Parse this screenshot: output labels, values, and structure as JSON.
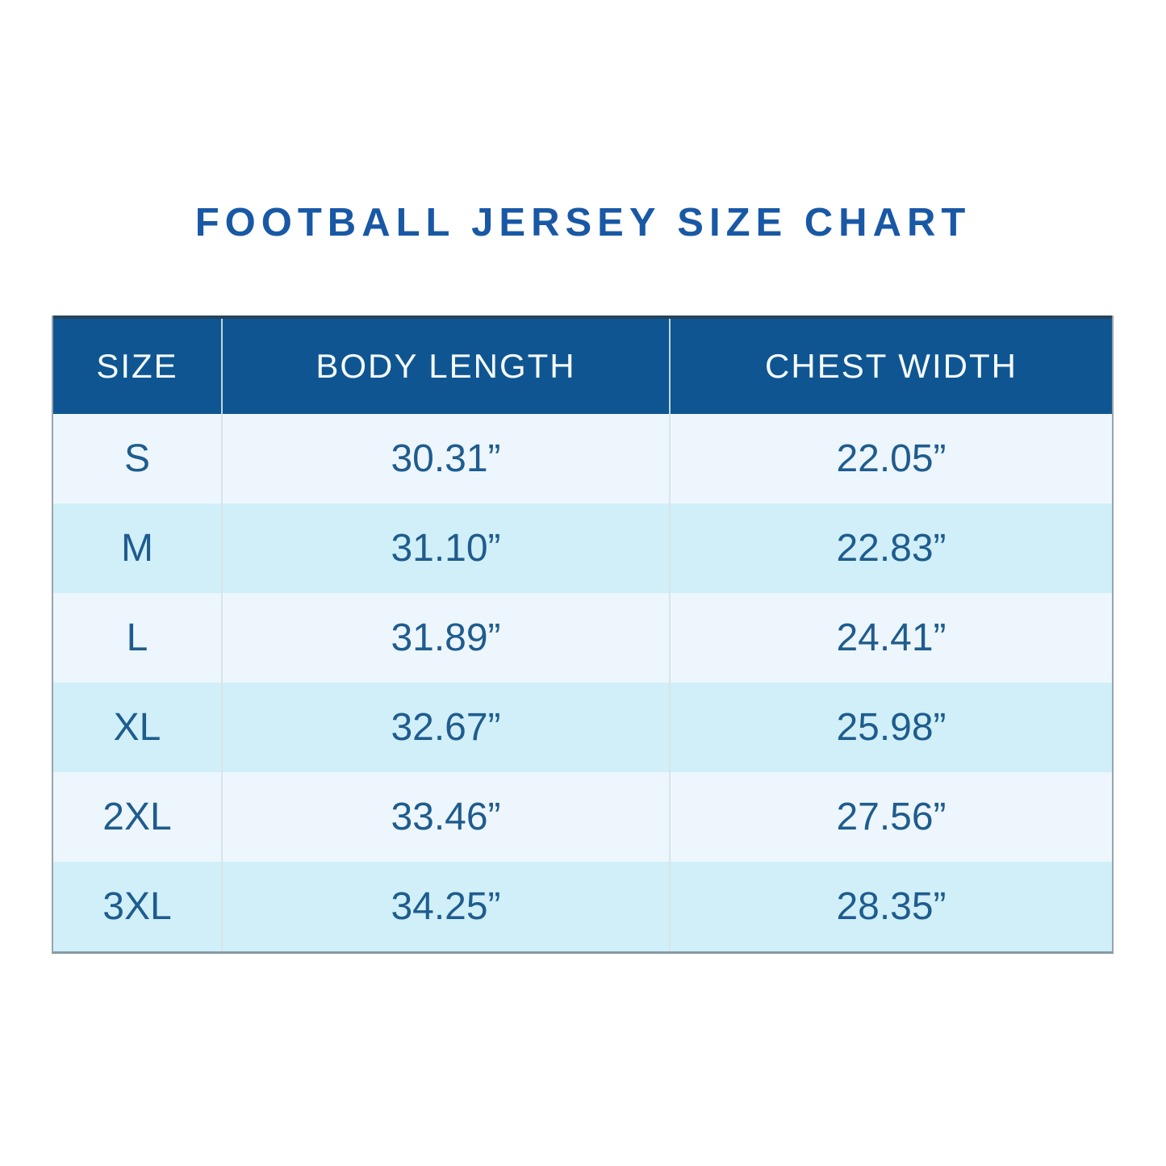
{
  "colors": {
    "page-bg": "#FFFFFF",
    "title-text": "#1958A5",
    "header-bg": "#0F5591",
    "header-text": "#F5FBFE",
    "header-top-border": "#23445A",
    "row-light": "#EDF6FD",
    "row-dark": "#D0EFF8",
    "cell-text": "#1F5C8E",
    "table-border": "#98A4AD",
    "table-bottom-border": "#8799A4",
    "divider": "#D7E4EA",
    "divider-header": "#C2D6E1"
  },
  "chart_data": {
    "type": "table",
    "title": "FOOTBALL JERSEY SIZE CHART",
    "columns": [
      "SIZE",
      "BODY LENGTH",
      "CHEST WIDTH"
    ],
    "rows": [
      [
        "S",
        "30.31”",
        "22.05”"
      ],
      [
        "M",
        "31.10”",
        "22.83”"
      ],
      [
        "L",
        "31.89”",
        "24.41”"
      ],
      [
        "XL",
        "32.67”",
        "25.98”"
      ],
      [
        "2XL",
        "33.46”",
        "27.56”"
      ],
      [
        "3XL",
        "34.25”",
        "28.35”"
      ]
    ],
    "layout": {
      "legend": "none",
      "grid": "off",
      "header_style": "solid-blue-bar",
      "row_striping": "alternating light/cyan"
    }
  }
}
